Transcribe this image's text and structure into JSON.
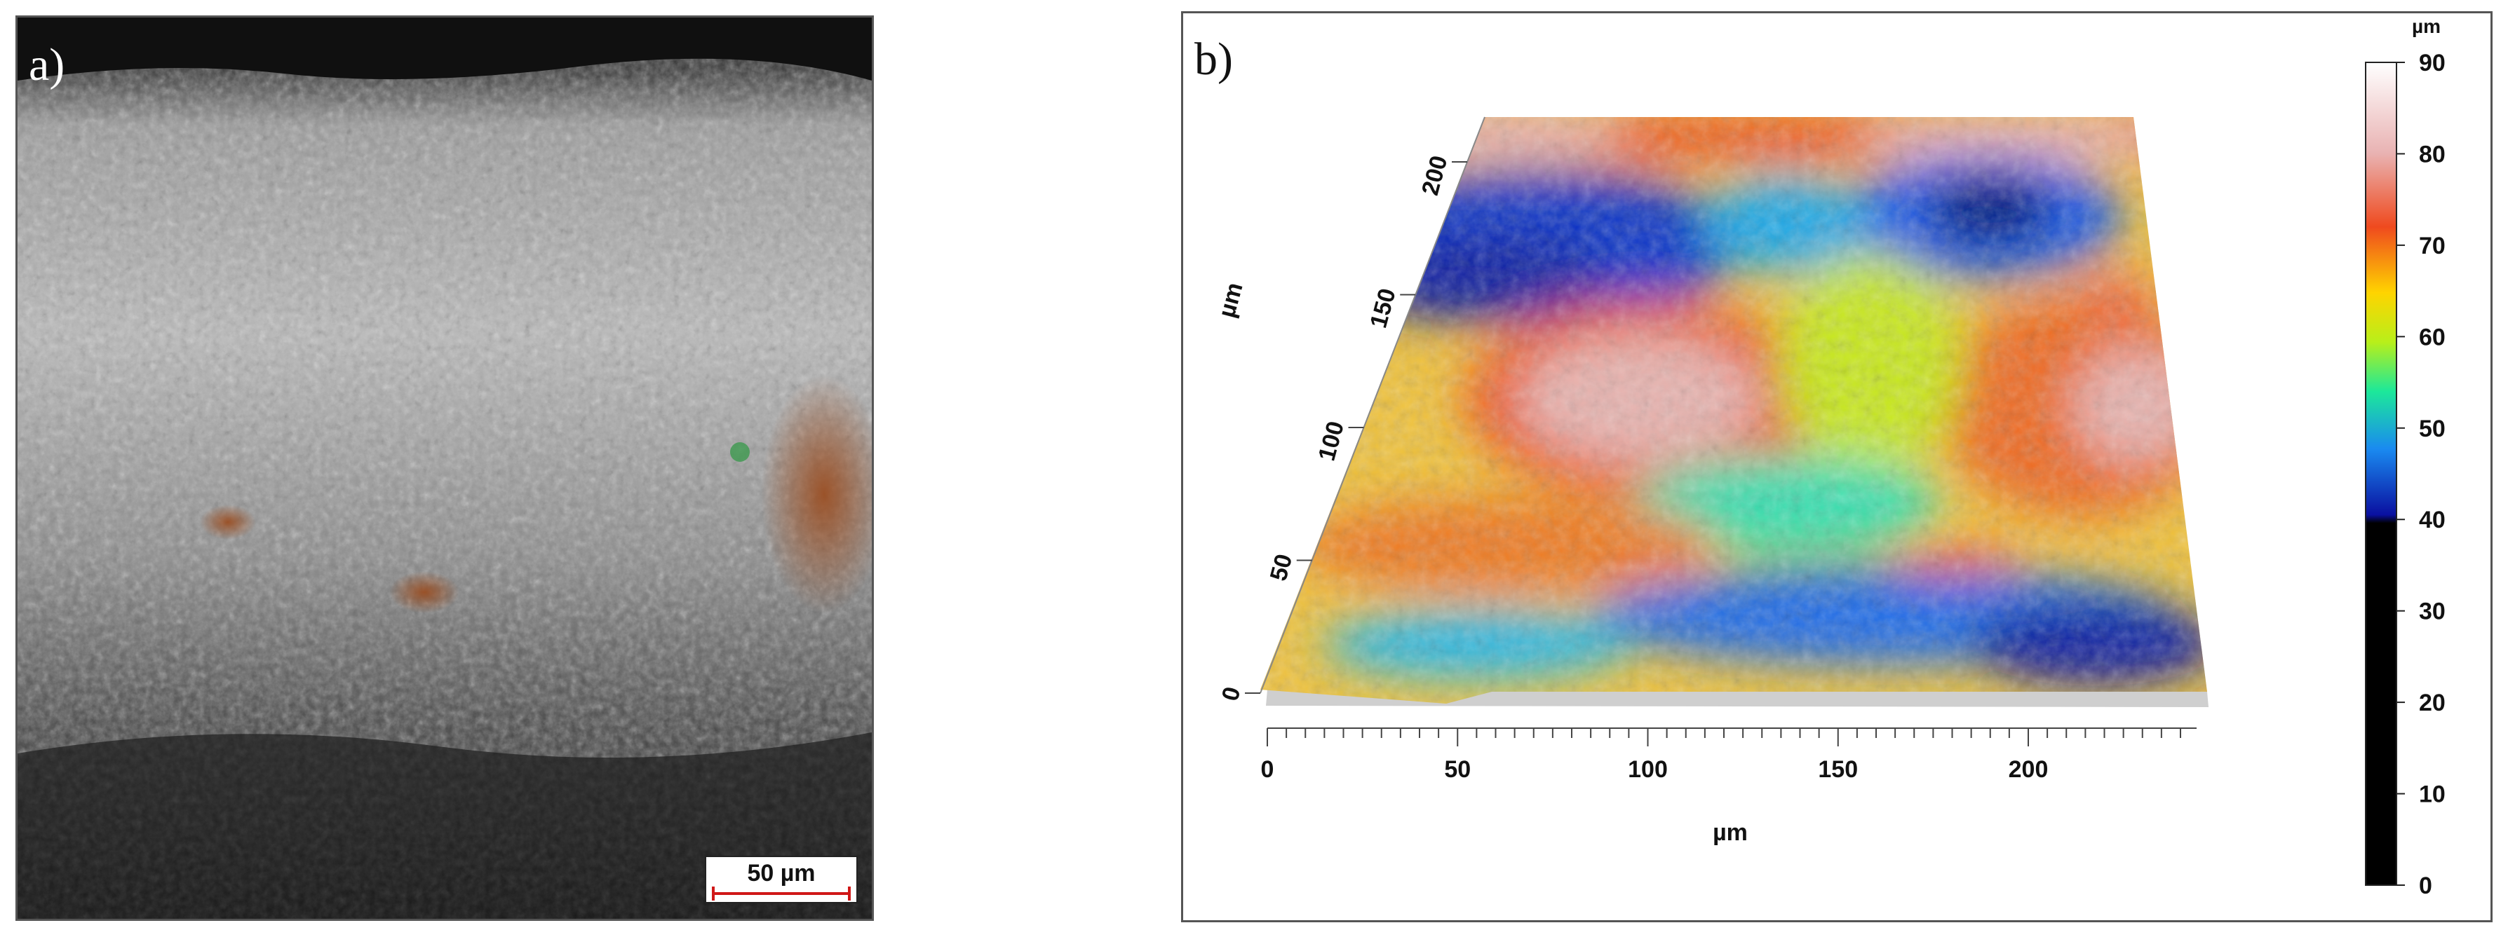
{
  "panel_a": {
    "letter": "a)",
    "scale_bar": "50 µm"
  },
  "panel_b": {
    "letter": "b)",
    "x_axis": {
      "label": "µm",
      "ticks": [
        "0",
        "50",
        "100",
        "150",
        "200"
      ]
    },
    "y_axis": {
      "label": "µm",
      "ticks": [
        "0",
        "50",
        "100",
        "150",
        "200"
      ]
    },
    "colorbar": {
      "unit": "µm",
      "ticks": [
        "90",
        "80",
        "70",
        "60",
        "50",
        "40",
        "30",
        "20",
        "10",
        "0"
      ]
    }
  }
}
